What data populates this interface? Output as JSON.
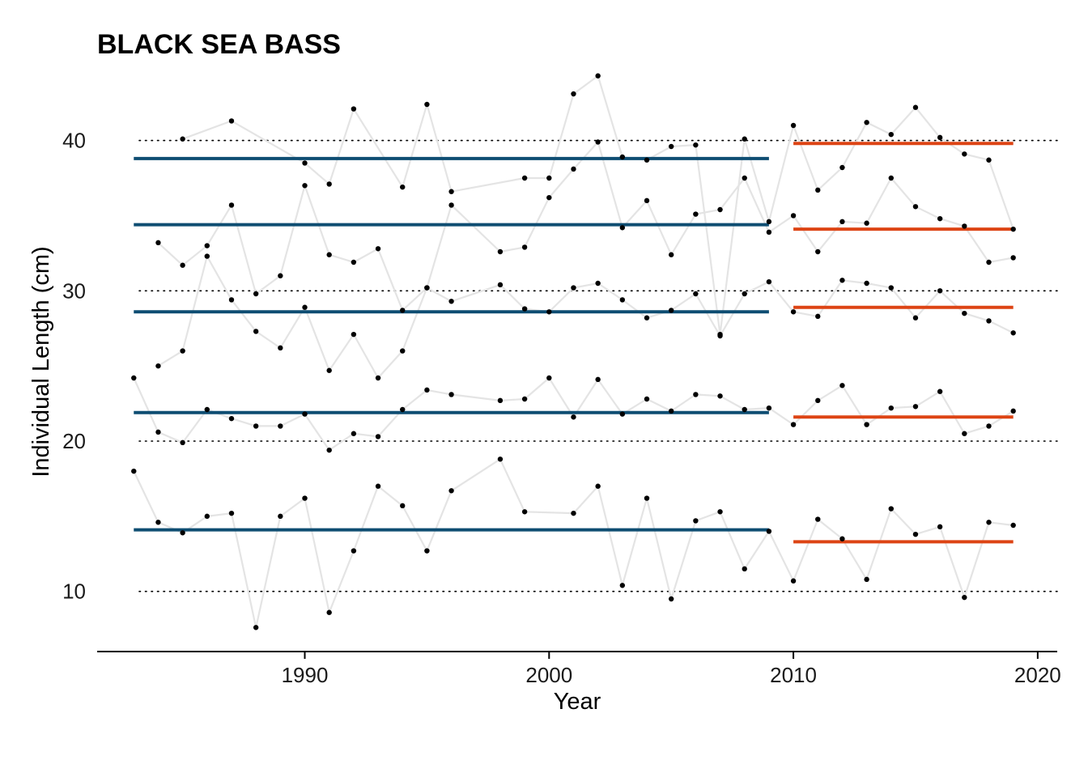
{
  "chart_data": {
    "type": "line",
    "title": "BLACK SEA BASS",
    "xlabel": "Year",
    "ylabel": "Individual Length (cm)",
    "xlim": [
      1981.5,
      2020.8
    ],
    "ylim": [
      6,
      44.5
    ],
    "x_ticks": [
      1990,
      2000,
      2010,
      2020
    ],
    "y_ticks": [
      10,
      20,
      30,
      40
    ],
    "grid": "horizontal dotted at y ticks",
    "colors": {
      "raw_line": "#e4e4e4",
      "points": "#000000",
      "mean_before": "#0e4d72",
      "mean_after": "#dd4414",
      "gridline": "#000000",
      "axis": "#000000"
    },
    "series": [
      {
        "x": [
          1983,
          1984,
          1985,
          1986,
          1987,
          1988,
          1989,
          1990,
          1991,
          1992,
          1993,
          1994,
          1995,
          1996,
          1998,
          1999,
          2001,
          2002,
          2003,
          2004,
          2005,
          2006,
          2007,
          2008,
          2009,
          2010,
          2011,
          2012,
          2013,
          2014,
          2015,
          2016,
          2017,
          2018,
          2019
        ],
        "y": [
          18.0,
          14.6,
          13.9,
          15.0,
          15.2,
          7.6,
          15.0,
          16.2,
          8.6,
          12.7,
          17.0,
          15.7,
          12.7,
          16.7,
          18.8,
          15.3,
          15.2,
          17.0,
          10.4,
          16.2,
          9.5,
          14.7,
          15.3,
          11.5,
          14.0,
          10.7,
          14.8,
          13.5,
          10.8,
          15.5,
          13.8,
          14.3,
          9.6,
          14.6,
          14.4
        ]
      },
      {
        "x": [
          1983,
          1984,
          1985,
          1986,
          1987,
          1988,
          1989,
          1990,
          1991,
          1992,
          1993,
          1994,
          1995,
          1996,
          1998,
          1999,
          2000,
          2001,
          2002,
          2003,
          2004,
          2005,
          2006,
          2007,
          2008,
          2009,
          2010,
          2011,
          2012,
          2013,
          2014,
          2015,
          2016,
          2017,
          2018,
          2019
        ],
        "y": [
          24.2,
          20.6,
          19.9,
          22.1,
          21.5,
          21.0,
          21.0,
          21.8,
          19.4,
          20.5,
          20.3,
          22.1,
          23.4,
          23.1,
          22.7,
          22.8,
          24.2,
          21.6,
          24.1,
          21.8,
          22.8,
          22.0,
          23.1,
          23.0,
          22.1,
          22.2,
          21.1,
          22.7,
          23.7,
          21.1,
          22.2,
          22.3,
          23.3,
          20.5,
          21.0,
          22.0
        ]
      },
      {
        "x": [
          1984,
          1985,
          1986,
          1987,
          1988,
          1989,
          1990,
          1991,
          1992,
          1993,
          1994,
          1995,
          1996,
          1998,
          1999,
          2000,
          2001,
          2002,
          2003,
          2004,
          2005,
          2006,
          2007,
          2008,
          2009,
          2010,
          2011,
          2012,
          2013,
          2014,
          2015,
          2016,
          2017,
          2018,
          2019
        ],
        "y": [
          25.0,
          26.0,
          32.3,
          29.4,
          27.3,
          26.2,
          28.9,
          24.7,
          27.1,
          24.2,
          26.0,
          30.2,
          29.3,
          30.4,
          28.8,
          28.6,
          30.2,
          30.5,
          29.4,
          28.2,
          28.7,
          29.8,
          27.0,
          29.8,
          30.6,
          28.6,
          28.3,
          30.7,
          30.5,
          30.2,
          28.2,
          30.0,
          28.5,
          28.0,
          27.2
        ]
      },
      {
        "x": [
          1984,
          1985,
          1986,
          1987,
          1988,
          1989,
          1990,
          1991,
          1992,
          1993,
          1994,
          1995,
          1996,
          1998,
          1999,
          2000,
          2001,
          2002,
          2003,
          2004,
          2005,
          2006,
          2007,
          2008,
          2009,
          2010,
          2011,
          2012,
          2013,
          2014,
          2015,
          2016,
          2017,
          2018,
          2019
        ],
        "y": [
          33.2,
          31.7,
          33.0,
          35.7,
          29.8,
          31.0,
          37.0,
          32.4,
          31.9,
          32.8,
          28.7,
          30.2,
          35.7,
          32.6,
          32.9,
          36.2,
          38.1,
          39.9,
          34.2,
          36.0,
          32.4,
          35.1,
          35.4,
          37.5,
          33.9,
          35.0,
          32.6,
          34.6,
          34.5,
          37.5,
          35.6,
          34.8,
          34.3,
          31.9,
          32.2
        ]
      },
      {
        "x": [
          1985,
          1987,
          1990,
          1991,
          1992,
          1994,
          1995,
          1996,
          1999,
          2000,
          2001,
          2002,
          2003,
          2004,
          2005,
          2006,
          2007,
          2008,
          2009,
          2010,
          2011,
          2012,
          2013,
          2014,
          2015,
          2016,
          2017,
          2018,
          2019
        ],
        "y": [
          40.1,
          41.3,
          38.5,
          37.1,
          42.1,
          36.9,
          42.4,
          36.6,
          37.5,
          37.5,
          43.1,
          44.3,
          38.9,
          38.7,
          39.6,
          39.7,
          27.1,
          40.1,
          34.6,
          41.0,
          36.7,
          38.2,
          41.2,
          40.4,
          42.2,
          40.2,
          39.1,
          38.7,
          34.1
        ]
      }
    ],
    "mean_lines": [
      {
        "period": [
          1983,
          2009
        ],
        "value": 14.1,
        "color": "#0e4d72"
      },
      {
        "period": [
          1983,
          2009
        ],
        "value": 21.9,
        "color": "#0e4d72"
      },
      {
        "period": [
          1983,
          2009
        ],
        "value": 28.6,
        "color": "#0e4d72"
      },
      {
        "period": [
          1983,
          2009
        ],
        "value": 34.4,
        "color": "#0e4d72"
      },
      {
        "period": [
          1983,
          2009
        ],
        "value": 38.8,
        "color": "#0e4d72"
      },
      {
        "period": [
          2010,
          2019
        ],
        "value": 13.3,
        "color": "#dd4414"
      },
      {
        "period": [
          2010,
          2019
        ],
        "value": 21.6,
        "color": "#dd4414"
      },
      {
        "period": [
          2010,
          2019
        ],
        "value": 28.9,
        "color": "#dd4414"
      },
      {
        "period": [
          2010,
          2019
        ],
        "value": 34.1,
        "color": "#dd4414"
      },
      {
        "period": [
          2010,
          2019
        ],
        "value": 39.8,
        "color": "#dd4414"
      }
    ]
  }
}
